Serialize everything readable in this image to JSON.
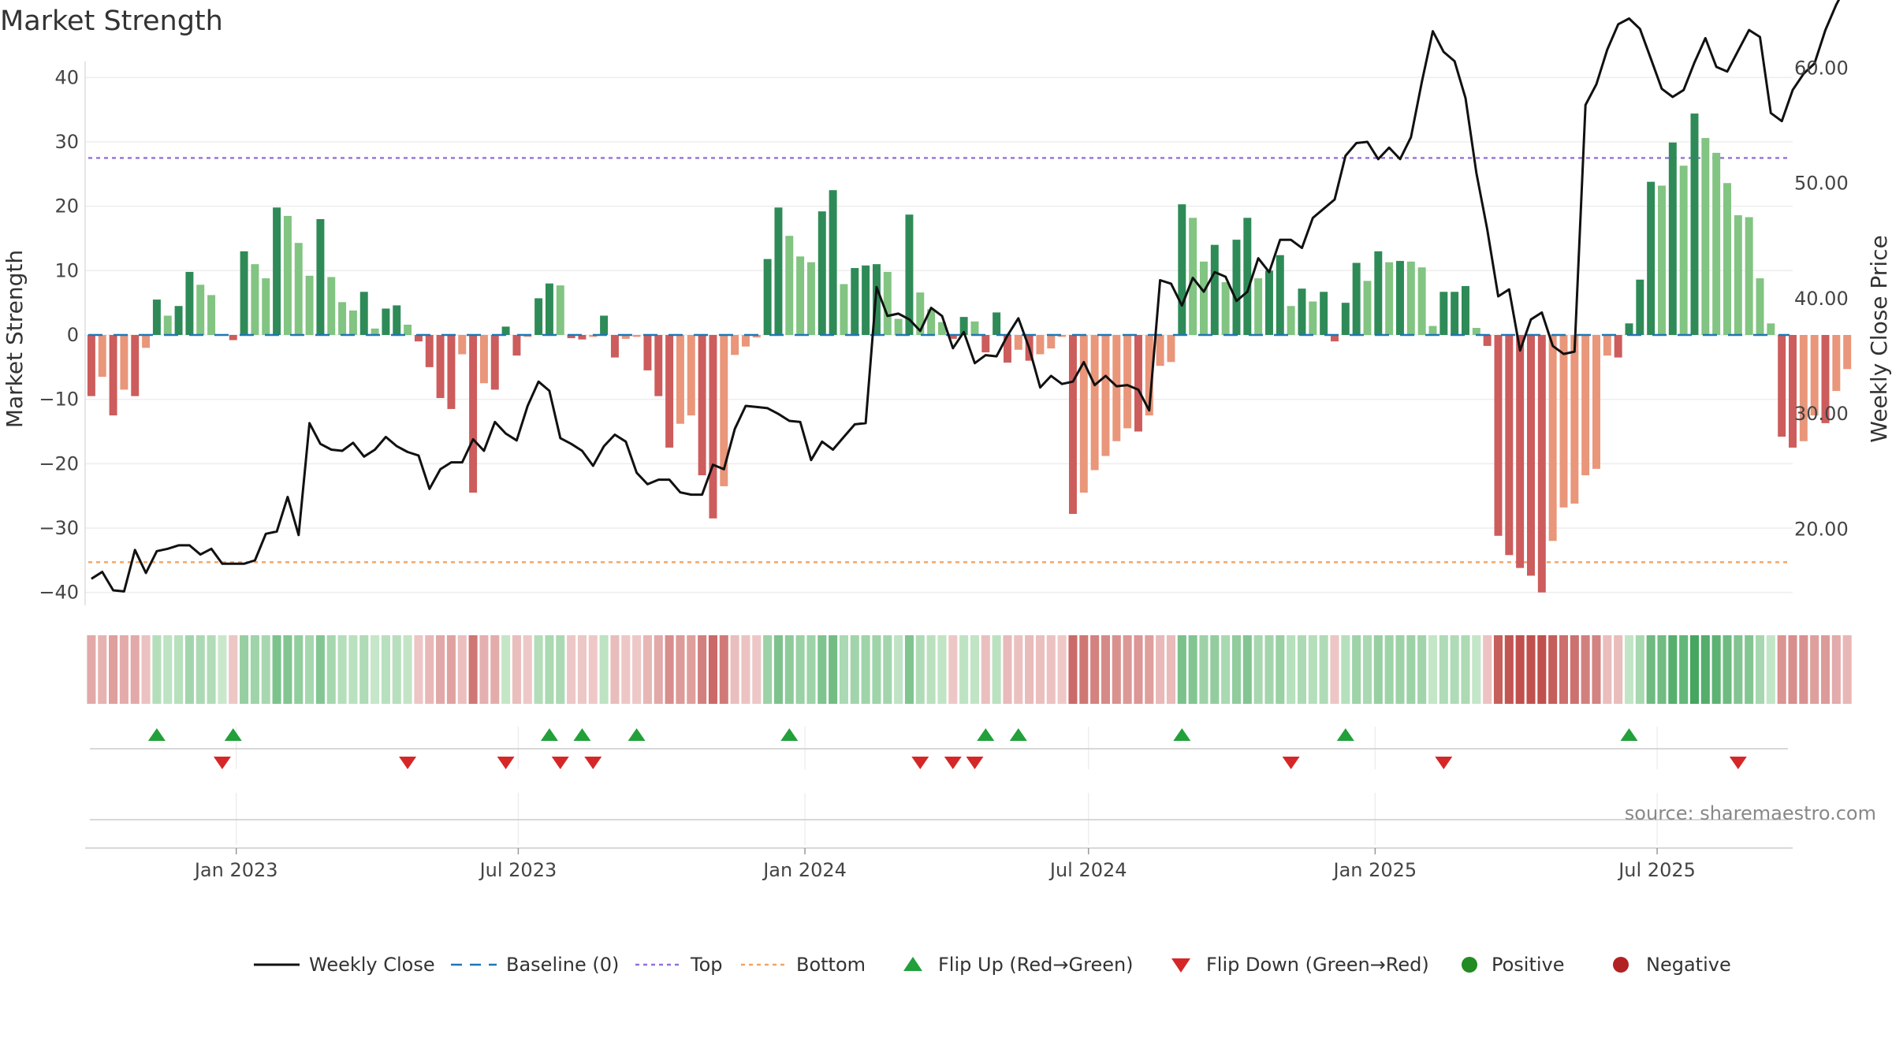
{
  "chart_data": {
    "type": "bar",
    "title": "Market Strength",
    "ylabel_left": "Market Strength",
    "ylabel_right": "Weekly Close Price",
    "source": "source: sharemaestro.com",
    "ylim_left": [
      -42,
      42
    ],
    "yticks_left": [
      40,
      30,
      20,
      10,
      0,
      -10,
      -20,
      -30,
      -40
    ],
    "ytick_labels_left": [
      "40",
      "30",
      "20",
      "10",
      "0",
      "−10",
      "−20",
      "−30",
      "−40"
    ],
    "ylim_right": [
      13.4,
      60.3
    ],
    "yticks_right": [
      60,
      50,
      40,
      30,
      20
    ],
    "ytick_labels_right": [
      "60.00",
      "50.00",
      "40.00",
      "30.00",
      "20.00"
    ],
    "x_range": [
      "2022-09-26",
      "2025-09-26"
    ],
    "x_ticks": [
      {
        "date": "2023-01-01",
        "label": "Jan 2023"
      },
      {
        "date": "2023-07-01",
        "label": "Jul 2023"
      },
      {
        "date": "2024-01-01",
        "label": "Jan 2024"
      },
      {
        "date": "2024-07-01",
        "label": "Jul 2024"
      },
      {
        "date": "2025-01-01",
        "label": "Jan 2025"
      },
      {
        "date": "2025-07-01",
        "label": "Jul 2025"
      }
    ],
    "start_week": "2022-09-30",
    "top_level": 27.5,
    "bottom_level": -35.3,
    "grid": true,
    "legend_position": "bottom",
    "colors": {
      "strong_green": "#2e8b57",
      "light_green": "#82c482",
      "strong_red": "#cd5c5c",
      "light_red": "#e9967a",
      "baseline": "#1f77b4",
      "top": "#9370db",
      "bottom": "#f4a460",
      "close_line": "#111111",
      "flip_up": "#22a03a",
      "flip_down": "#d62728",
      "positive": "#228b22",
      "negative": "#b22222"
    },
    "strength": [
      -9.5,
      -6.5,
      -12.5,
      -8.5,
      -9.5,
      -2,
      5.5,
      3,
      4.5,
      9.8,
      7.8,
      6.2,
      0,
      -0.8,
      13,
      11,
      8.8,
      19.8,
      18.5,
      14.3,
      9.2,
      18,
      9,
      5.1,
      3.8,
      6.7,
      1,
      4.1,
      4.6,
      1.6,
      -1,
      -5,
      -9.8,
      -11.5,
      -3,
      -24.5,
      -7.5,
      -8.5,
      1.3,
      -3.2,
      -0.3,
      5.7,
      8,
      7.7,
      -0.5,
      -0.7,
      -0.3,
      3,
      -3.5,
      -0.6,
      -0.3,
      -5.5,
      -9.5,
      -17.5,
      -13.8,
      -12.5,
      -21.8,
      -28.5,
      -23.5,
      -3.1,
      -1.8,
      -0.4,
      11.8,
      19.8,
      15.4,
      12.2,
      11.3,
      19.2,
      22.5,
      7.9,
      10.4,
      10.8,
      11,
      9.8,
      2.5,
      18.7,
      6.6,
      4,
      2,
      -0.6,
      2.8,
      2.1,
      -2.7,
      3.5,
      -4.3,
      -2.3,
      -4,
      -3,
      -2.1,
      -0.3,
      -27.8,
      -24.5,
      -21,
      -18.8,
      -16.5,
      -14.5,
      -15,
      -12.5,
      -4.8,
      -4.2,
      20.3,
      18.2,
      11.4,
      14,
      8.2,
      14.8,
      18.2,
      8.8,
      10,
      12.4,
      4.5,
      7.2,
      5.2,
      6.7,
      -1,
      5,
      11.2,
      8.4,
      13,
      11.3,
      11.5,
      11.4,
      10.5,
      1.4,
      6.7,
      6.7,
      7.6,
      1.1,
      -1.7,
      -31.2,
      -34.2,
      -36.2,
      -37.4,
      -40,
      -32,
      -26.8,
      -26.2,
      -21.8,
      -20.8,
      -3.2,
      -3.5,
      1.8,
      8.6,
      23.8,
      23.2,
      29.9,
      26.3,
      34.4,
      30.6,
      28.3,
      23.6,
      18.6,
      18.3,
      8.8,
      1.8,
      -15.8,
      -17.5,
      -16.5,
      -12.5,
      -13.7,
      -8.7,
      -5.3
    ],
    "weekly_close": [
      15.7,
      16.3,
      14.7,
      14.6,
      18.2,
      16.2,
      18.1,
      18.3,
      18.6,
      18.6,
      17.8,
      18.3,
      17,
      17,
      17,
      17.3,
      19.6,
      19.8,
      22.8,
      19.5,
      29.2,
      27.4,
      26.9,
      26.8,
      27.5,
      26.3,
      26.9,
      28,
      27.2,
      26.7,
      26.4,
      23.5,
      25.2,
      25.8,
      25.8,
      27.8,
      26.8,
      29.3,
      28.3,
      27.7,
      30.7,
      32.8,
      32,
      27.9,
      27.4,
      26.8,
      25.5,
      27.2,
      28.2,
      27.6,
      24.9,
      23.9,
      24.3,
      24.3,
      23.2,
      23,
      23,
      25.6,
      25.2,
      28.7,
      30.7,
      30.6,
      30.5,
      30,
      29.4,
      29.3,
      26,
      27.6,
      26.9,
      28,
      29.1,
      29.2,
      41,
      38.5,
      38.7,
      38.2,
      37.2,
      39.2,
      38.5,
      35.7,
      37.1,
      34.4,
      35.1,
      35,
      36.8,
      38.3,
      35.7,
      32.3,
      33.3,
      32.6,
      32.8,
      34.5,
      32.5,
      33.3,
      32.4,
      32.5,
      32.1,
      30.3,
      41.6,
      41.3,
      39.4,
      41.8,
      40.6,
      42.3,
      41.9,
      39.8,
      40.6,
      43.5,
      42.3,
      45.1,
      45.1,
      44.4,
      47,
      47.8,
      48.6,
      52.4,
      53.5,
      53.6,
      52.1,
      53.1,
      52.1,
      54,
      58.8,
      63.2,
      61.4,
      60.6,
      57.4,
      50.9,
      46,
      40.2,
      40.8,
      35.5,
      38.2,
      38.8,
      35.9,
      35.2,
      35.4,
      56.8,
      58.6,
      61.6,
      63.8,
      64.3,
      63.4,
      60.8,
      58.2,
      57.5,
      58.1,
      60.5,
      62.6,
      60.1,
      59.7,
      61.5,
      63.3,
      62.7,
      56.1,
      55.4,
      58.1,
      59.5,
      60.4,
      63.3,
      65.5,
      67.3
    ],
    "flip_up_weeks": [
      6,
      13,
      42,
      45,
      50,
      64,
      82,
      85,
      100,
      115,
      141
    ],
    "flip_down_weeks": [
      12,
      29,
      38,
      43,
      46,
      76,
      79,
      81,
      110,
      124,
      151
    ],
    "signal_top_weeks": [
      3,
      23,
      12
    ],
    "legend": [
      {
        "key": "close",
        "label": "Weekly Close"
      },
      {
        "key": "baseline",
        "label": "Baseline (0)"
      },
      {
        "key": "top",
        "label": "Top"
      },
      {
        "key": "bottom",
        "label": "Bottom"
      },
      {
        "key": "flip_up",
        "label": "Flip Up (Red→Green)"
      },
      {
        "key": "flip_down",
        "label": "Flip Down (Green→Red)"
      },
      {
        "key": "positive",
        "label": "Positive"
      },
      {
        "key": "negative",
        "label": "Negative"
      }
    ]
  }
}
